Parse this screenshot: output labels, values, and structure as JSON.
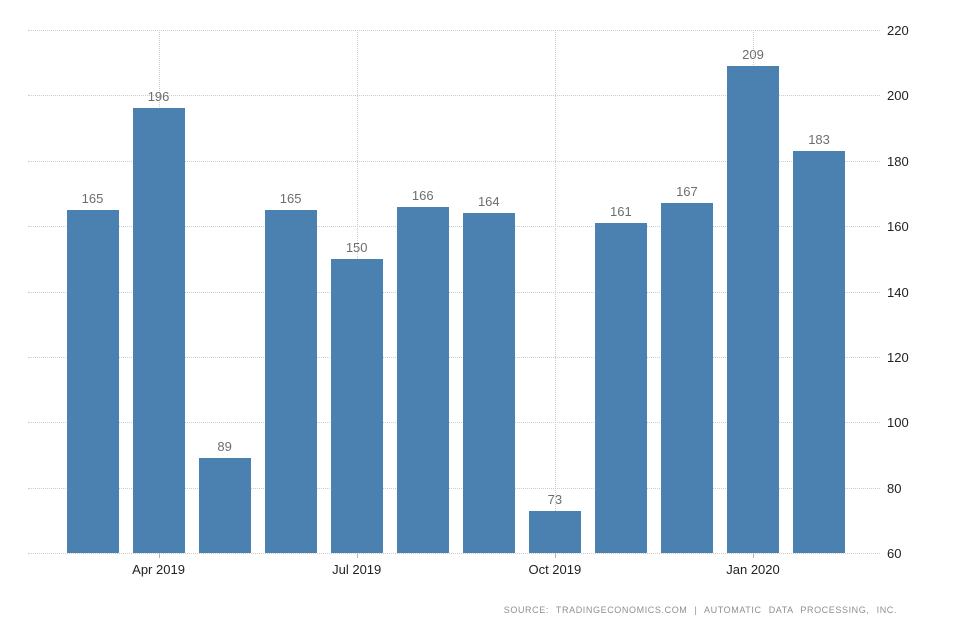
{
  "chart_data": {
    "type": "bar",
    "title": "",
    "values": [
      165,
      196,
      89,
      165,
      150,
      166,
      164,
      73,
      161,
      167,
      209,
      183
    ],
    "data_labels": [
      "165",
      "196",
      "89",
      "165",
      "150",
      "166",
      "164",
      "73",
      "161",
      "167",
      "209",
      "183"
    ],
    "x_tick_labels": [
      "Apr 2019",
      "Jul 2019",
      "Oct 2019",
      "Jan 2020"
    ],
    "x_tick_bar_indices": [
      1,
      4,
      7,
      10
    ],
    "y_ticks": [
      220,
      200,
      180,
      160,
      140,
      120,
      100,
      80,
      60
    ],
    "ylim": [
      60,
      220
    ],
    "y_axis_side": "right",
    "grid": "dotted",
    "legend": "none",
    "colors": {
      "bar": "#4a81b1",
      "grid": "#cccccc",
      "value_label": "#6e6e6e",
      "axis_label": "#222222",
      "tick": "#b3b3b3",
      "source_text": "#8f8f8f"
    },
    "source": "SOURCE: TRADINGECONOMICS.COM | AUTOMATIC DATA PROCESSING, INC."
  }
}
